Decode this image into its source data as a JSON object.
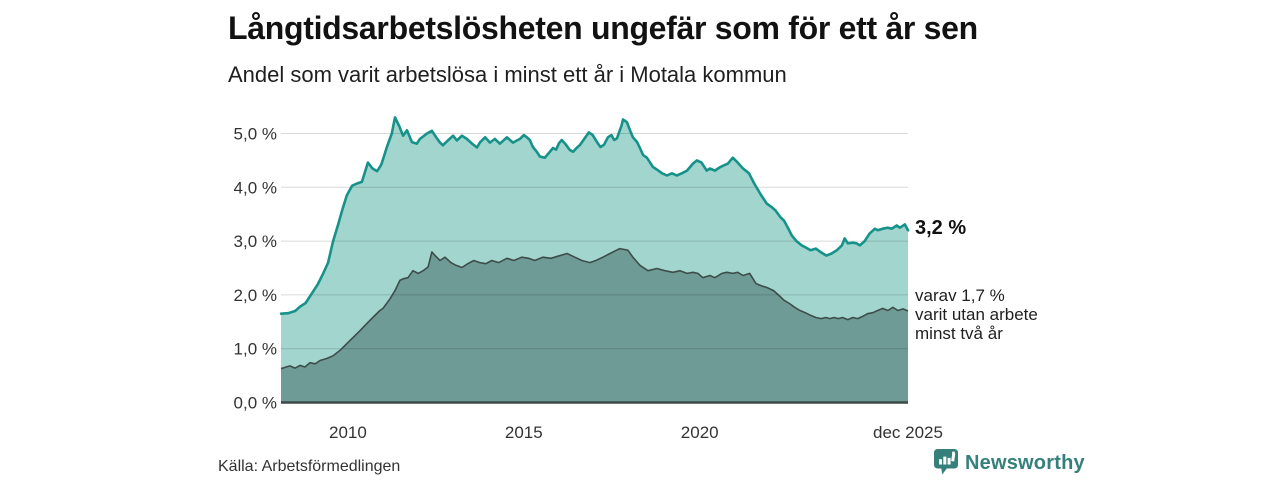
{
  "header": {
    "title": "Långtidsarbetslösheten ungefär som för ett år sen",
    "subtitle": "Andel som varit arbetslösa i minst ett år i Motala kommun"
  },
  "annotations": {
    "total_value": "3,2 %",
    "sub_line1": "varav 1,7 %",
    "sub_line2": "varit utan arbete",
    "sub_line3": "minst två år"
  },
  "footer": {
    "source": "Källa: Arbetsförmedlingen",
    "brand": "Newsworthy",
    "brand_icon": "newsworthy-speech-bubble-bar-chart-icon"
  },
  "colors": {
    "line_total": "#17928a",
    "area_total": "#a2d5ce",
    "line_two_years": "#3d4e4a",
    "area_two_years": "#6f9b96",
    "baseline": "#3c4a47",
    "gridline": "rgba(0,0,0,0.15)",
    "axis_text": "#333333",
    "brand_teal": "#35807b"
  },
  "chart_data": {
    "type": "area",
    "title": "Långtidsarbetslösheten ungefär som för ett år sen",
    "subtitle": "Andel som varit arbetslösa i minst ett år i Motala kommun",
    "unit": "%",
    "grid": true,
    "legend_position": "right-edge-annotations",
    "x_axis": {
      "ticks": [
        {
          "label": "2010",
          "year": 2010.0
        },
        {
          "label": "2015",
          "year": 2015.0
        },
        {
          "label": "2020",
          "year": 2020.0
        },
        {
          "label": "dec 2025",
          "year": 2025.92
        }
      ],
      "range": [
        2008.1,
        2025.92
      ]
    },
    "y_axis": {
      "ticks": [
        {
          "label": "0,0 %",
          "value": 0
        },
        {
          "label": "1,0 %",
          "value": 1
        },
        {
          "label": "2,0 %",
          "value": 2
        },
        {
          "label": "3,0 %",
          "value": 3
        },
        {
          "label": "4,0 %",
          "value": 4
        },
        {
          "label": "5,0 %",
          "value": 5
        }
      ],
      "range": [
        0,
        5.5
      ]
    },
    "series": [
      {
        "name": "Andel arbetslösa minst ett år",
        "end_label": "3,2 %",
        "end_value": 3.2,
        "points": [
          [
            2008.1,
            1.65
          ],
          [
            2008.3,
            1.66
          ],
          [
            2008.5,
            1.7
          ],
          [
            2008.64,
            1.78
          ],
          [
            2008.8,
            1.85
          ],
          [
            2008.95,
            2.0
          ],
          [
            2009.15,
            2.2
          ],
          [
            2009.3,
            2.4
          ],
          [
            2009.44,
            2.6
          ],
          [
            2009.58,
            3.0
          ],
          [
            2009.72,
            3.3
          ],
          [
            2009.85,
            3.6
          ],
          [
            2009.97,
            3.85
          ],
          [
            2010.12,
            4.03
          ],
          [
            2010.26,
            4.07
          ],
          [
            2010.4,
            4.1
          ],
          [
            2010.57,
            4.46
          ],
          [
            2010.7,
            4.35
          ],
          [
            2010.83,
            4.3
          ],
          [
            2010.95,
            4.42
          ],
          [
            2011.11,
            4.75
          ],
          [
            2011.25,
            5.0
          ],
          [
            2011.34,
            5.3
          ],
          [
            2011.45,
            5.15
          ],
          [
            2011.57,
            4.96
          ],
          [
            2011.68,
            5.06
          ],
          [
            2011.82,
            4.84
          ],
          [
            2011.96,
            4.81
          ],
          [
            2012.05,
            4.9
          ],
          [
            2012.25,
            5.0
          ],
          [
            2012.39,
            5.05
          ],
          [
            2012.48,
            4.96
          ],
          [
            2012.62,
            4.83
          ],
          [
            2012.7,
            4.78
          ],
          [
            2012.84,
            4.87
          ],
          [
            2012.99,
            4.96
          ],
          [
            2013.1,
            4.87
          ],
          [
            2013.24,
            4.96
          ],
          [
            2013.38,
            4.9
          ],
          [
            2013.53,
            4.81
          ],
          [
            2013.67,
            4.74
          ],
          [
            2013.75,
            4.83
          ],
          [
            2013.9,
            4.93
          ],
          [
            2014.04,
            4.83
          ],
          [
            2014.18,
            4.9
          ],
          [
            2014.32,
            4.81
          ],
          [
            2014.52,
            4.93
          ],
          [
            2014.69,
            4.83
          ],
          [
            2014.89,
            4.9
          ],
          [
            2015.0,
            4.97
          ],
          [
            2015.09,
            4.93
          ],
          [
            2015.17,
            4.88
          ],
          [
            2015.26,
            4.75
          ],
          [
            2015.37,
            4.66
          ],
          [
            2015.46,
            4.57
          ],
          [
            2015.6,
            4.55
          ],
          [
            2015.74,
            4.66
          ],
          [
            2015.83,
            4.73
          ],
          [
            2015.92,
            4.7
          ],
          [
            2016.0,
            4.82
          ],
          [
            2016.08,
            4.88
          ],
          [
            2016.2,
            4.79
          ],
          [
            2016.3,
            4.7
          ],
          [
            2016.4,
            4.66
          ],
          [
            2016.5,
            4.73
          ],
          [
            2016.6,
            4.79
          ],
          [
            2016.75,
            4.93
          ],
          [
            2016.85,
            5.02
          ],
          [
            2016.96,
            4.97
          ],
          [
            2017.08,
            4.84
          ],
          [
            2017.18,
            4.75
          ],
          [
            2017.28,
            4.79
          ],
          [
            2017.39,
            4.93
          ],
          [
            2017.49,
            4.97
          ],
          [
            2017.57,
            4.88
          ],
          [
            2017.65,
            4.91
          ],
          [
            2017.73,
            5.06
          ],
          [
            2017.78,
            5.15
          ],
          [
            2017.82,
            5.26
          ],
          [
            2017.93,
            5.21
          ],
          [
            2018.02,
            5.06
          ],
          [
            2018.1,
            4.93
          ],
          [
            2018.22,
            4.84
          ],
          [
            2018.3,
            4.73
          ],
          [
            2018.39,
            4.6
          ],
          [
            2018.5,
            4.55
          ],
          [
            2018.59,
            4.46
          ],
          [
            2018.67,
            4.38
          ],
          [
            2018.78,
            4.33
          ],
          [
            2018.93,
            4.26
          ],
          [
            2019.07,
            4.22
          ],
          [
            2019.21,
            4.26
          ],
          [
            2019.35,
            4.22
          ],
          [
            2019.49,
            4.26
          ],
          [
            2019.64,
            4.31
          ],
          [
            2019.81,
            4.44
          ],
          [
            2019.92,
            4.5
          ],
          [
            2020.05,
            4.46
          ],
          [
            2020.2,
            4.31
          ],
          [
            2020.29,
            4.35
          ],
          [
            2020.43,
            4.31
          ],
          [
            2020.57,
            4.37
          ],
          [
            2020.66,
            4.4
          ],
          [
            2020.8,
            4.44
          ],
          [
            2020.94,
            4.55
          ],
          [
            2021.08,
            4.46
          ],
          [
            2021.23,
            4.35
          ],
          [
            2021.4,
            4.26
          ],
          [
            2021.55,
            4.07
          ],
          [
            2021.75,
            3.85
          ],
          [
            2021.9,
            3.7
          ],
          [
            2022.05,
            3.63
          ],
          [
            2022.15,
            3.57
          ],
          [
            2022.3,
            3.44
          ],
          [
            2022.4,
            3.38
          ],
          [
            2022.52,
            3.23
          ],
          [
            2022.62,
            3.1
          ],
          [
            2022.75,
            3.0
          ],
          [
            2022.9,
            2.92
          ],
          [
            2023.02,
            2.88
          ],
          [
            2023.15,
            2.83
          ],
          [
            2023.3,
            2.86
          ],
          [
            2023.45,
            2.79
          ],
          [
            2023.6,
            2.73
          ],
          [
            2023.75,
            2.77
          ],
          [
            2023.9,
            2.83
          ],
          [
            2024.04,
            2.92
          ],
          [
            2024.12,
            3.05
          ],
          [
            2024.21,
            2.96
          ],
          [
            2024.35,
            2.97
          ],
          [
            2024.46,
            2.96
          ],
          [
            2024.55,
            2.92
          ],
          [
            2024.69,
            3.0
          ],
          [
            2024.83,
            3.14
          ],
          [
            2024.98,
            3.23
          ],
          [
            2025.06,
            3.2
          ],
          [
            2025.2,
            3.23
          ],
          [
            2025.35,
            3.25
          ],
          [
            2025.46,
            3.23
          ],
          [
            2025.6,
            3.29
          ],
          [
            2025.69,
            3.25
          ],
          [
            2025.83,
            3.31
          ],
          [
            2025.92,
            3.2
          ]
        ]
      },
      {
        "name": "varav utan arbete minst två år",
        "end_label": "varav 1,7 % varit utan arbete minst två år",
        "end_value": 1.7,
        "points": [
          [
            2008.1,
            0.63
          ],
          [
            2008.35,
            0.68
          ],
          [
            2008.5,
            0.64
          ],
          [
            2008.64,
            0.69
          ],
          [
            2008.78,
            0.66
          ],
          [
            2008.92,
            0.74
          ],
          [
            2009.07,
            0.72
          ],
          [
            2009.21,
            0.78
          ],
          [
            2009.41,
            0.82
          ],
          [
            2009.58,
            0.87
          ],
          [
            2009.78,
            0.97
          ],
          [
            2009.98,
            1.1
          ],
          [
            2010.15,
            1.21
          ],
          [
            2010.35,
            1.34
          ],
          [
            2010.54,
            1.47
          ],
          [
            2010.71,
            1.58
          ],
          [
            2010.91,
            1.71
          ],
          [
            2011.0,
            1.75
          ],
          [
            2011.2,
            1.93
          ],
          [
            2011.34,
            2.08
          ],
          [
            2011.48,
            2.27
          ],
          [
            2011.57,
            2.3
          ],
          [
            2011.71,
            2.32
          ],
          [
            2011.85,
            2.45
          ],
          [
            2012.0,
            2.4
          ],
          [
            2012.14,
            2.45
          ],
          [
            2012.28,
            2.52
          ],
          [
            2012.39,
            2.8
          ],
          [
            2012.48,
            2.73
          ],
          [
            2012.62,
            2.64
          ],
          [
            2012.76,
            2.7
          ],
          [
            2012.93,
            2.6
          ],
          [
            2013.07,
            2.55
          ],
          [
            2013.24,
            2.51
          ],
          [
            2013.41,
            2.58
          ],
          [
            2013.58,
            2.64
          ],
          [
            2013.75,
            2.6
          ],
          [
            2013.92,
            2.58
          ],
          [
            2014.09,
            2.64
          ],
          [
            2014.29,
            2.6
          ],
          [
            2014.52,
            2.68
          ],
          [
            2014.72,
            2.64
          ],
          [
            2014.94,
            2.7
          ],
          [
            2015.14,
            2.68
          ],
          [
            2015.31,
            2.64
          ],
          [
            2015.54,
            2.7
          ],
          [
            2015.77,
            2.68
          ],
          [
            2015.97,
            2.72
          ],
          [
            2016.23,
            2.77
          ],
          [
            2016.45,
            2.7
          ],
          [
            2016.65,
            2.64
          ],
          [
            2016.88,
            2.6
          ],
          [
            2017.05,
            2.64
          ],
          [
            2017.25,
            2.7
          ],
          [
            2017.45,
            2.77
          ],
          [
            2017.6,
            2.82
          ],
          [
            2017.73,
            2.86
          ],
          [
            2017.96,
            2.83
          ],
          [
            2018.1,
            2.7
          ],
          [
            2018.3,
            2.55
          ],
          [
            2018.53,
            2.45
          ],
          [
            2018.78,
            2.49
          ],
          [
            2019.01,
            2.45
          ],
          [
            2019.24,
            2.42
          ],
          [
            2019.44,
            2.45
          ],
          [
            2019.64,
            2.4
          ],
          [
            2019.81,
            2.42
          ],
          [
            2019.95,
            2.4
          ],
          [
            2020.09,
            2.32
          ],
          [
            2020.29,
            2.36
          ],
          [
            2020.43,
            2.32
          ],
          [
            2020.63,
            2.4
          ],
          [
            2020.77,
            2.42
          ],
          [
            2020.94,
            2.4
          ],
          [
            2021.08,
            2.42
          ],
          [
            2021.23,
            2.36
          ],
          [
            2021.42,
            2.4
          ],
          [
            2021.6,
            2.21
          ],
          [
            2021.75,
            2.17
          ],
          [
            2021.9,
            2.14
          ],
          [
            2022.1,
            2.08
          ],
          [
            2022.25,
            1.99
          ],
          [
            2022.4,
            1.9
          ],
          [
            2022.55,
            1.84
          ],
          [
            2022.7,
            1.77
          ],
          [
            2022.85,
            1.71
          ],
          [
            2023.0,
            1.67
          ],
          [
            2023.15,
            1.62
          ],
          [
            2023.3,
            1.58
          ],
          [
            2023.45,
            1.56
          ],
          [
            2023.58,
            1.58
          ],
          [
            2023.7,
            1.56
          ],
          [
            2023.82,
            1.58
          ],
          [
            2023.94,
            1.56
          ],
          [
            2024.06,
            1.58
          ],
          [
            2024.21,
            1.54
          ],
          [
            2024.35,
            1.58
          ],
          [
            2024.49,
            1.56
          ],
          [
            2024.63,
            1.6
          ],
          [
            2024.77,
            1.65
          ],
          [
            2024.92,
            1.67
          ],
          [
            2025.06,
            1.71
          ],
          [
            2025.2,
            1.75
          ],
          [
            2025.35,
            1.71
          ],
          [
            2025.49,
            1.77
          ],
          [
            2025.63,
            1.71
          ],
          [
            2025.78,
            1.74
          ],
          [
            2025.92,
            1.7
          ]
        ]
      }
    ]
  }
}
